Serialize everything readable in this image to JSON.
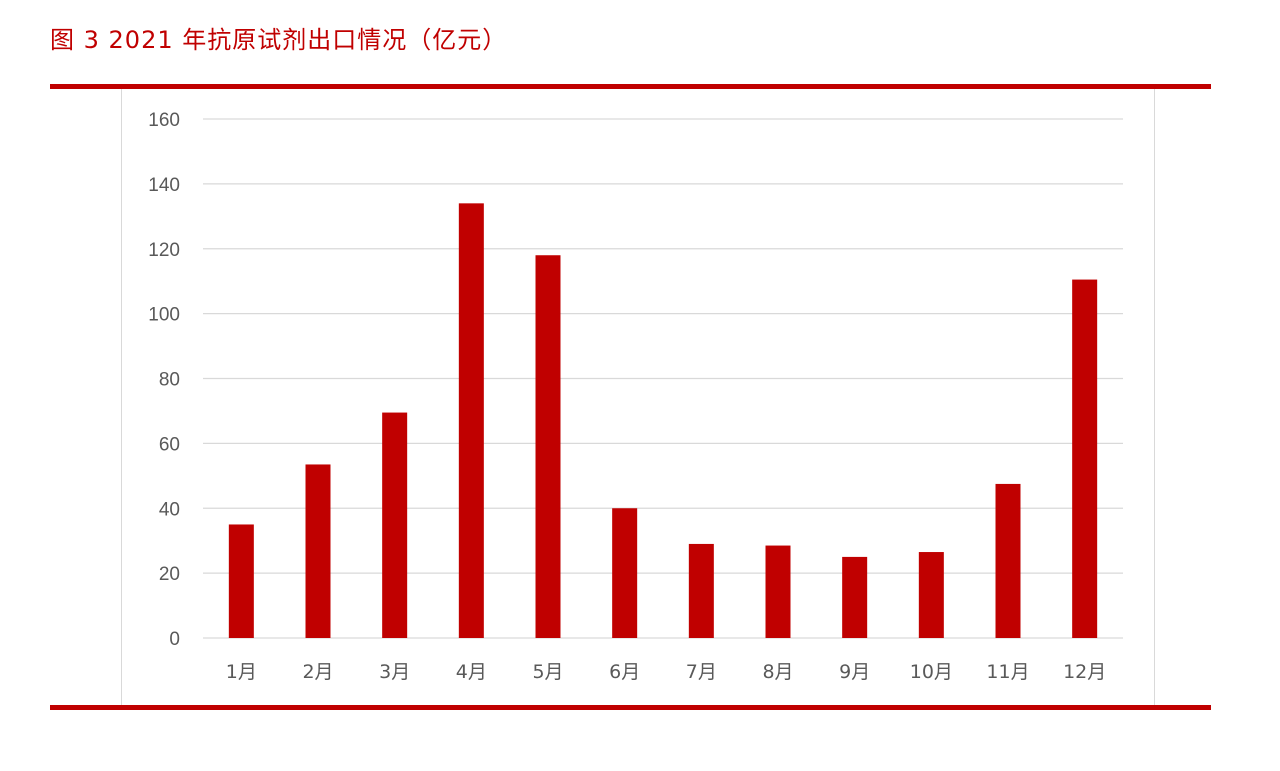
{
  "figure": {
    "title": "图 3 2021 年抗原试剂出口情况（亿元）"
  },
  "colors": {
    "accent": "#c00000",
    "bar": "#c00000",
    "grid": "#d9d9d9",
    "text": "#595959"
  },
  "chart_data": {
    "type": "bar",
    "title": "",
    "xlabel": "",
    "ylabel": "",
    "categories": [
      "1月",
      "2月",
      "3月",
      "4月",
      "5月",
      "6月",
      "7月",
      "8月",
      "9月",
      "10月",
      "11月",
      "12月"
    ],
    "values": [
      35,
      53.5,
      69.5,
      134,
      118,
      40,
      29,
      28.5,
      25,
      26.5,
      47.5,
      110.5
    ],
    "ylim": [
      0,
      160
    ],
    "yticks": [
      0,
      20,
      40,
      60,
      80,
      100,
      120,
      140,
      160
    ],
    "grid": true,
    "legend": "none"
  }
}
